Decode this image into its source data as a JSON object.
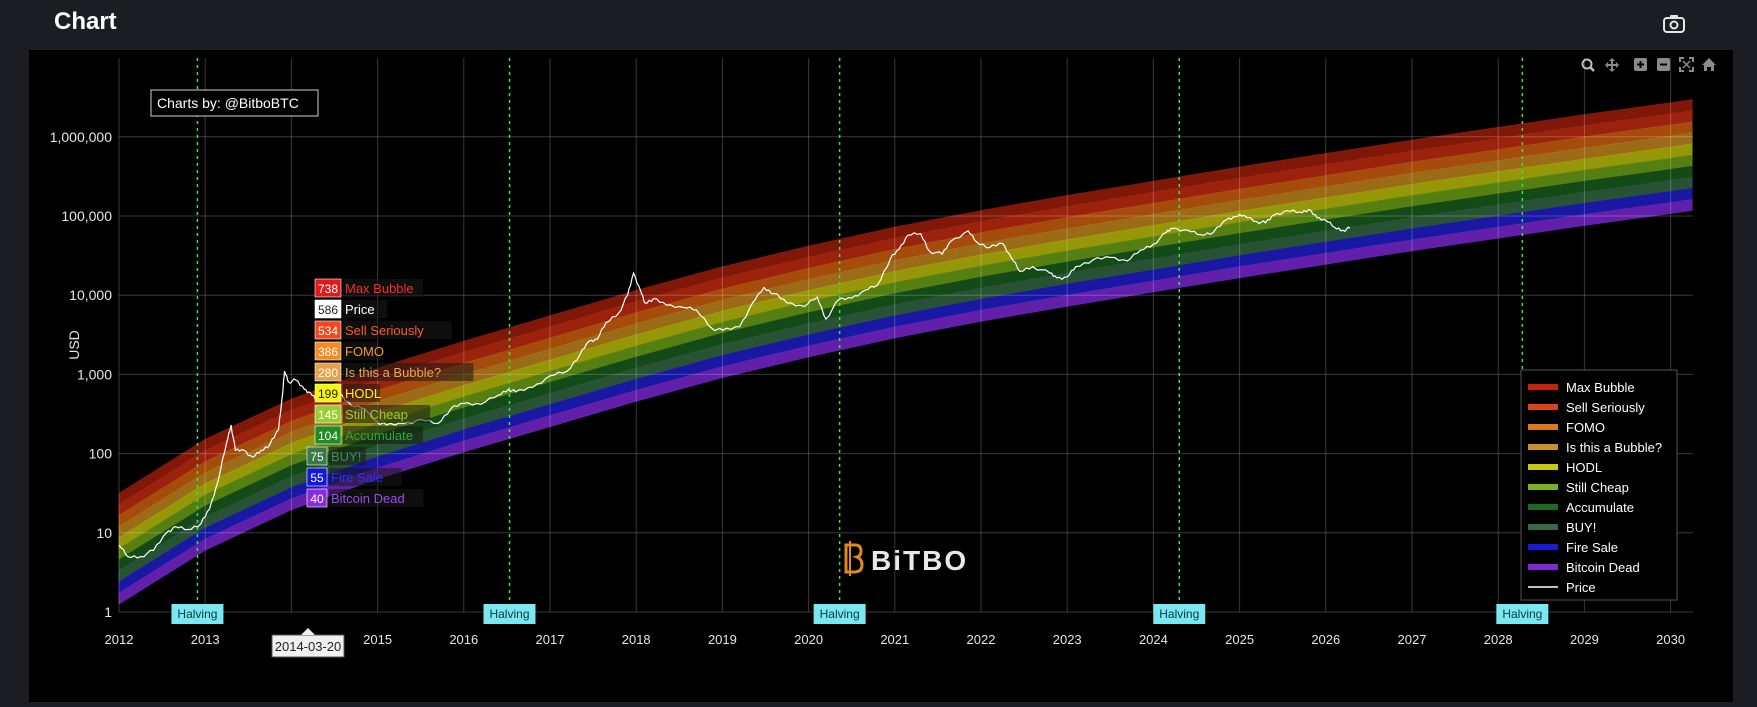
{
  "page": {
    "title": "Chart",
    "camera_icon": "camera-icon"
  },
  "chart_data": {
    "type": "area",
    "xlabel": "",
    "ylabel": "USD",
    "yscale": "log",
    "ylim": [
      1,
      3000000
    ],
    "xlim": [
      2012,
      2030.2
    ],
    "grid": true,
    "legend_position": "right",
    "x_ticks": [
      "2012",
      "2013",
      "2014",
      "2015",
      "2016",
      "2017",
      "2018",
      "2019",
      "2020",
      "2021",
      "2022",
      "2023",
      "2024",
      "2025",
      "2026",
      "2027",
      "2028",
      "2029",
      "2030"
    ],
    "y_ticks": [
      {
        "value": 1,
        "label": "1"
      },
      {
        "value": 10,
        "label": "10"
      },
      {
        "value": 100,
        "label": "100"
      },
      {
        "value": 1000,
        "label": "1,000"
      },
      {
        "value": 10000,
        "label": "10,000"
      },
      {
        "value": 100000,
        "label": "100,000"
      },
      {
        "value": 1000000,
        "label": "1,000,000"
      }
    ],
    "annotation": "Charts by: @BitboBTC",
    "watermark": "BiTBO",
    "halvings": [
      {
        "x": 2012.91,
        "label": "Halving"
      },
      {
        "x": 2016.53,
        "label": "Halving"
      },
      {
        "x": 2020.36,
        "label": "Halving"
      },
      {
        "x": 2024.3,
        "label": "Halving"
      },
      {
        "x": 2028.28,
        "label": "Halving"
      }
    ],
    "hover": {
      "date": "2014-03-20",
      "x": 2014.22,
      "items": [
        {
          "value": "738",
          "label": "Max Bubble",
          "color": "#e31a1c",
          "text_color": "#ff2a2a"
        },
        {
          "value": "586",
          "label": "Price",
          "color": "#ffffff",
          "text_color": "#ffffff"
        },
        {
          "value": "534",
          "label": "Sell Seriously",
          "color": "#f2481b",
          "text_color": "#ff5a2a"
        },
        {
          "value": "386",
          "label": "FOMO",
          "color": "#f58a1f",
          "text_color": "#f59a2a"
        },
        {
          "value": "280",
          "label": "Is this a Bubble?",
          "color": "#e5a24a",
          "text_color": "#f0a84a"
        },
        {
          "value": "199",
          "label": "HODL",
          "color": "#f5f50a",
          "text_color": "#f5f50a"
        },
        {
          "value": "145",
          "label": "Still Cheap",
          "color": "#9acd32",
          "text_color": "#9acd32"
        },
        {
          "value": "104",
          "label": "Accumulate",
          "color": "#228b22",
          "text_color": "#2eaa2e"
        },
        {
          "value": "75",
          "label": "BUY!",
          "color": "#3a7a4a",
          "text_color": "#3e8e55"
        },
        {
          "value": "55",
          "label": "Fire Sale",
          "color": "#1515e0",
          "text_color": "#3030ff"
        },
        {
          "value": "40",
          "label": "Bitcoin Dead",
          "color": "#8a2be2",
          "text_color": "#9a4af0"
        }
      ]
    },
    "bands": [
      {
        "name": "Max Bubble",
        "color": "#8b1a0a",
        "lower_offset": 1.22,
        "upper_offset": 1.36
      },
      {
        "name": "Sell Seriously",
        "color": "#a8260e",
        "lower_offset": 1.08,
        "upper_offset": 1.22
      },
      {
        "name": "FOMO",
        "color": "#b3520e",
        "lower_offset": 0.94,
        "upper_offset": 1.08
      },
      {
        "name": "Is this a Bubble?",
        "color": "#a8741a",
        "lower_offset": 0.8,
        "upper_offset": 0.94
      },
      {
        "name": "HODL",
        "color": "#a3a30a",
        "lower_offset": 0.66,
        "upper_offset": 0.8
      },
      {
        "name": "Still Cheap",
        "color": "#5c8a12",
        "lower_offset": 0.52,
        "upper_offset": 0.66
      },
      {
        "name": "Accumulate",
        "color": "#16501a",
        "lower_offset": 0.38,
        "upper_offset": 0.52
      },
      {
        "name": "BUY!",
        "color": "#2a5a38",
        "lower_offset": 0.24,
        "upper_offset": 0.38
      },
      {
        "name": "Fire Sale",
        "color": "#1a1ab0",
        "lower_offset": 0.1,
        "upper_offset": 0.24
      },
      {
        "name": "Bitcoin Dead",
        "color": "#6a22b8",
        "lower_offset": -0.04,
        "upper_offset": 0.1
      }
    ],
    "band_base": {
      "description": "log10 of lowest band edge at year t",
      "points": [
        [
          2012.0,
          0.14
        ],
        [
          2013.0,
          0.82
        ],
        [
          2014.0,
          1.33
        ],
        [
          2015.0,
          1.72
        ],
        [
          2016.0,
          2.06
        ],
        [
          2017.0,
          2.38
        ],
        [
          2018.0,
          2.7
        ],
        [
          2019.0,
          3.0
        ],
        [
          2020.0,
          3.26
        ],
        [
          2021.0,
          3.5
        ],
        [
          2022.0,
          3.71
        ],
        [
          2023.0,
          3.9
        ],
        [
          2024.0,
          4.08
        ],
        [
          2025.0,
          4.26
        ],
        [
          2026.0,
          4.43
        ],
        [
          2027.0,
          4.6
        ],
        [
          2028.0,
          4.76
        ],
        [
          2029.0,
          4.92
        ],
        [
          2030.0,
          5.07
        ],
        [
          2030.25,
          5.11
        ]
      ]
    },
    "legend": [
      {
        "name": "Max Bubble",
        "color": "#c4230e"
      },
      {
        "name": "Sell Seriously",
        "color": "#d8431a"
      },
      {
        "name": "FOMO",
        "color": "#d87a1a"
      },
      {
        "name": "Is this a Bubble?",
        "color": "#c8902a"
      },
      {
        "name": "HODL",
        "color": "#c8c810"
      },
      {
        "name": "Still Cheap",
        "color": "#7ab020"
      },
      {
        "name": "Accumulate",
        "color": "#1e6a22"
      },
      {
        "name": "BUY!",
        "color": "#356a45"
      },
      {
        "name": "Fire Sale",
        "color": "#1a1ad0"
      },
      {
        "name": "Bitcoin Dead",
        "color": "#7a2ad0"
      },
      {
        "name": "Price",
        "color": "#ffffff"
      }
    ],
    "series": [
      {
        "name": "Price",
        "color": "#ffffff",
        "points": [
          [
            2012.0,
            7
          ],
          [
            2012.1,
            5
          ],
          [
            2012.25,
            5
          ],
          [
            2012.4,
            6
          ],
          [
            2012.55,
            10
          ],
          [
            2012.65,
            12
          ],
          [
            2012.8,
            11
          ],
          [
            2012.95,
            13
          ],
          [
            2013.05,
            20
          ],
          [
            2013.15,
            45
          ],
          [
            2013.25,
            140
          ],
          [
            2013.3,
            230
          ],
          [
            2013.35,
            110
          ],
          [
            2013.45,
            110
          ],
          [
            2013.55,
            90
          ],
          [
            2013.65,
            110
          ],
          [
            2013.75,
            130
          ],
          [
            2013.85,
            200
          ],
          [
            2013.9,
            600
          ],
          [
            2013.92,
            1100
          ],
          [
            2013.97,
            800
          ],
          [
            2014.05,
            850
          ],
          [
            2014.15,
            650
          ],
          [
            2014.22,
            586
          ],
          [
            2014.3,
            460
          ],
          [
            2014.45,
            620
          ],
          [
            2014.55,
            590
          ],
          [
            2014.7,
            400
          ],
          [
            2014.85,
            370
          ],
          [
            2015.0,
            250
          ],
          [
            2015.1,
            230
          ],
          [
            2015.3,
            240
          ],
          [
            2015.5,
            270
          ],
          [
            2015.7,
            240
          ],
          [
            2015.85,
            370
          ],
          [
            2016.0,
            430
          ],
          [
            2016.2,
            420
          ],
          [
            2016.4,
            550
          ],
          [
            2016.52,
            650
          ],
          [
            2016.6,
            600
          ],
          [
            2016.8,
            690
          ],
          [
            2017.0,
            960
          ],
          [
            2017.2,
            1100
          ],
          [
            2017.35,
            1800
          ],
          [
            2017.45,
            2600
          ],
          [
            2017.55,
            2800
          ],
          [
            2017.65,
            4500
          ],
          [
            2017.8,
            6000
          ],
          [
            2017.9,
            10000
          ],
          [
            2017.97,
            19000
          ],
          [
            2018.05,
            11500
          ],
          [
            2018.1,
            8000
          ],
          [
            2018.2,
            9000
          ],
          [
            2018.35,
            7500
          ],
          [
            2018.55,
            7000
          ],
          [
            2018.7,
            6500
          ],
          [
            2018.88,
            3800
          ],
          [
            2019.0,
            3600
          ],
          [
            2019.2,
            4000
          ],
          [
            2019.35,
            8000
          ],
          [
            2019.48,
            12500
          ],
          [
            2019.6,
            10500
          ],
          [
            2019.75,
            8000
          ],
          [
            2019.95,
            7200
          ],
          [
            2020.1,
            9500
          ],
          [
            2020.2,
            5000
          ],
          [
            2020.35,
            8800
          ],
          [
            2020.5,
            9200
          ],
          [
            2020.65,
            11500
          ],
          [
            2020.8,
            13500
          ],
          [
            2020.95,
            29000
          ],
          [
            2021.05,
            38000
          ],
          [
            2021.15,
            57000
          ],
          [
            2021.3,
            60000
          ],
          [
            2021.4,
            36000
          ],
          [
            2021.55,
            33000
          ],
          [
            2021.65,
            48000
          ],
          [
            2021.85,
            65000
          ],
          [
            2021.95,
            47000
          ],
          [
            2022.1,
            40000
          ],
          [
            2022.25,
            45000
          ],
          [
            2022.35,
            30000
          ],
          [
            2022.45,
            20000
          ],
          [
            2022.6,
            23000
          ],
          [
            2022.8,
            19000
          ],
          [
            2022.88,
            16500
          ],
          [
            2023.0,
            17000
          ],
          [
            2023.1,
            23000
          ],
          [
            2023.3,
            28000
          ],
          [
            2023.5,
            30000
          ],
          [
            2023.7,
            27000
          ],
          [
            2023.85,
            37000
          ],
          [
            2024.0,
            44000
          ],
          [
            2024.15,
            62000
          ],
          [
            2024.22,
            70000
          ],
          [
            2024.4,
            66000
          ],
          [
            2024.55,
            58000
          ],
          [
            2024.7,
            63000
          ],
          [
            2024.85,
            90000
          ],
          [
            2024.95,
            98000
          ],
          [
            2025.05,
            102000
          ],
          [
            2025.2,
            85000
          ],
          [
            2025.3,
            82000
          ],
          [
            2025.4,
            103000
          ],
          [
            2025.55,
            117000
          ],
          [
            2025.7,
            112000
          ],
          [
            2025.8,
            120000
          ],
          [
            2025.9,
            95000
          ],
          [
            2026.0,
            88000
          ],
          [
            2026.1,
            72000
          ],
          [
            2026.2,
            66000
          ],
          [
            2026.28,
            70000
          ]
        ]
      }
    ]
  }
}
